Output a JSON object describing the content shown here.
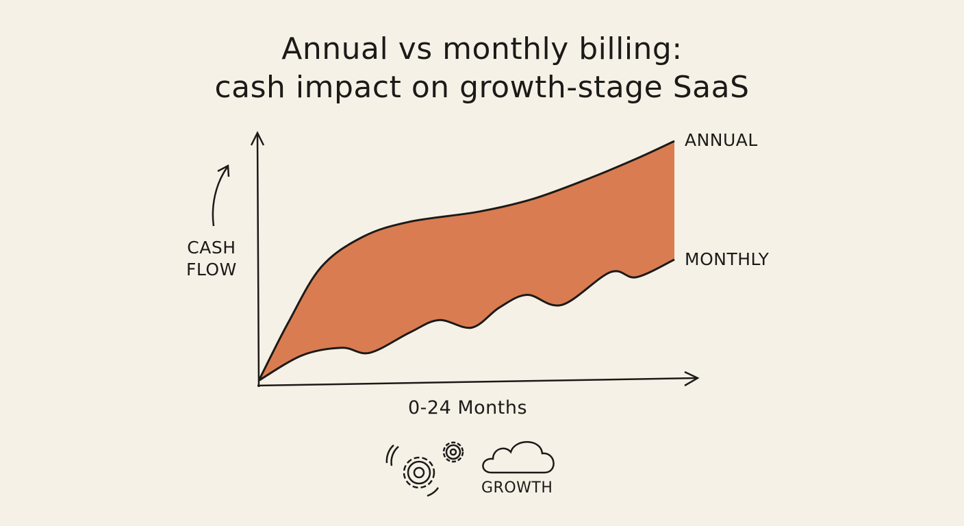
{
  "chart_data": {
    "type": "area",
    "title": "Annual vs monthly billing:\ncash impact on growth-stage SaaS",
    "title_lines": [
      "Annual vs monthly billing:",
      "cash impact on growth-stage SaaS"
    ],
    "xlabel": "0-24 Months",
    "ylabel": "CASH FLOW",
    "ylabel_lines": [
      "CASH",
      "FLOW"
    ],
    "xlim": [
      0,
      24
    ],
    "ylim": [
      0,
      100
    ],
    "grid": false,
    "legend": "direct labels at line ends (right)",
    "fill_between_color": "#d4622f",
    "series": [
      {
        "name": "ANNUAL",
        "x": [
          0,
          1.7,
          3.6,
          6,
          8.7,
          12.7,
          15.8,
          19,
          21.8,
          24
        ],
        "y": [
          2,
          25,
          47,
          59,
          65,
          69,
          74,
          82,
          90,
          97
        ]
      },
      {
        "name": "MONTHLY",
        "x": [
          0,
          2.5,
          4.8,
          6.4,
          8.7,
          10.4,
          12.3,
          13.9,
          15.5,
          17.5,
          20.3,
          21.8,
          24
        ],
        "y": [
          2,
          12,
          15,
          13,
          21,
          26,
          23,
          31,
          36,
          32,
          45,
          43,
          50
        ]
      }
    ]
  },
  "footer": {
    "icons": [
      "gears-icon",
      "cloud-icon"
    ],
    "growth_label": "GROWTH"
  }
}
